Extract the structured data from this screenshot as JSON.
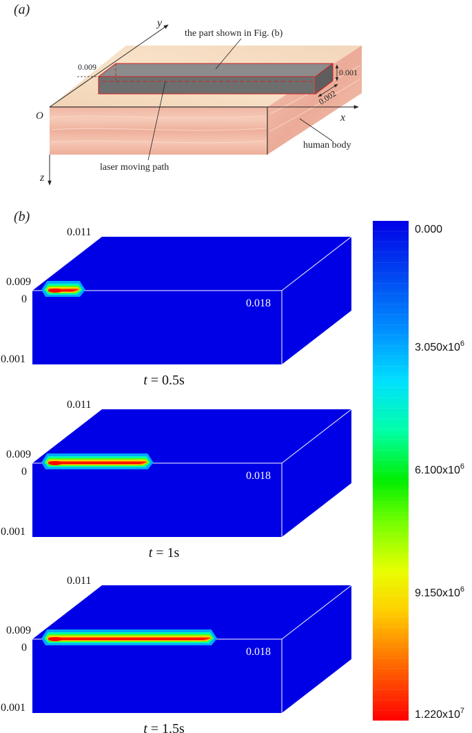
{
  "panel_a": {
    "label": "(a)",
    "axis_y": "y",
    "axis_x": "x",
    "axis_z": "z",
    "origin": "O",
    "callout_part": "the part shown in Fig. (b)",
    "callout_body": "human body",
    "callout_path": "laser moving path",
    "dim_width": "0.009",
    "dim_depth": "0.001",
    "dim_offset": "0.002"
  },
  "panel_b": {
    "label": "(b)",
    "snapshots": [
      {
        "time_label": "t = 0.5s",
        "heated_fraction": 0.12,
        "labels": {
          "top_back": "0.011",
          "top_left": "0.009",
          "front_top": "0",
          "front_bottom": "0.001",
          "front_right": "0.018"
        }
      },
      {
        "time_label": "t = 1s",
        "heated_fraction": 0.42,
        "labels": {
          "top_back": "0.011",
          "top_left": "0.009",
          "front_top": "0",
          "front_bottom": "0.001",
          "front_right": "0.018"
        }
      },
      {
        "time_label": "t = 1.5s",
        "heated_fraction": 0.7,
        "labels": {
          "top_back": "0.011",
          "top_left": "0.009",
          "front_top": "0",
          "front_bottom": "0.001",
          "front_right": "0.018"
        }
      }
    ],
    "colorbar": {
      "ticks": [
        {
          "value": 0,
          "mantissa": "0.000",
          "exp": ""
        },
        {
          "value": 3050000,
          "mantissa": "3.050x10",
          "exp": "6"
        },
        {
          "value": 6100000,
          "mantissa": "6.100x10",
          "exp": "6"
        },
        {
          "value": 9150000,
          "mantissa": "9.150x10",
          "exp": "6"
        },
        {
          "value": 12200000,
          "mantissa": "1.220x10",
          "exp": "7"
        }
      ],
      "colors": [
        "#0000e6",
        "#0060ff",
        "#00d8ff",
        "#00ffb0",
        "#00e000",
        "#90ff00",
        "#ffff00",
        "#ffb000",
        "#ff5000",
        "#ff0000"
      ]
    }
  }
}
